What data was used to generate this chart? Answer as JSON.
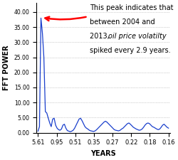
{
  "title": "",
  "xlabel": "YEARS",
  "ylabel": "FFT POWER",
  "x_tick_labels": [
    "5.61",
    "0.95",
    "0.51",
    "0.35",
    "0.27",
    "0.22",
    "0.18",
    "0.16"
  ],
  "yticks": [
    0.0,
    5.0,
    10.0,
    15.0,
    20.0,
    25.0,
    30.0,
    35.0,
    40.0
  ],
  "ylim": [
    0,
    43
  ],
  "line_color": "#1a3fcc",
  "background_color": "#ffffff",
  "annotation_fontsize": 7.0,
  "y_data": [
    0.5,
    2.0,
    38.0,
    33.0,
    25.0,
    7.0,
    6.5,
    4.8,
    3.2,
    2.0,
    4.5,
    4.8,
    2.5,
    1.5,
    1.0,
    0.8,
    1.2,
    2.5,
    2.8,
    1.5,
    0.7,
    0.5,
    0.3,
    0.5,
    0.8,
    1.5,
    2.5,
    3.5,
    4.5,
    4.8,
    4.0,
    3.0,
    2.0,
    1.5,
    1.2,
    0.8,
    0.6,
    0.5,
    0.4,
    0.6,
    1.0,
    1.5,
    2.0,
    2.5,
    3.0,
    3.5,
    3.8,
    3.5,
    3.0,
    2.5,
    2.0,
    1.5,
    1.0,
    0.8,
    0.7,
    0.6,
    0.8,
    1.2,
    1.5,
    2.0,
    2.5,
    3.0,
    3.2,
    2.8,
    2.3,
    1.8,
    1.5,
    1.2,
    1.0,
    0.8,
    0.9,
    1.2,
    1.8,
    2.5,
    3.0,
    3.2,
    3.0,
    2.5,
    2.0,
    1.8,
    1.5,
    1.2,
    1.0,
    1.2,
    1.8,
    2.5,
    2.8,
    2.3,
    1.8,
    1.5
  ]
}
